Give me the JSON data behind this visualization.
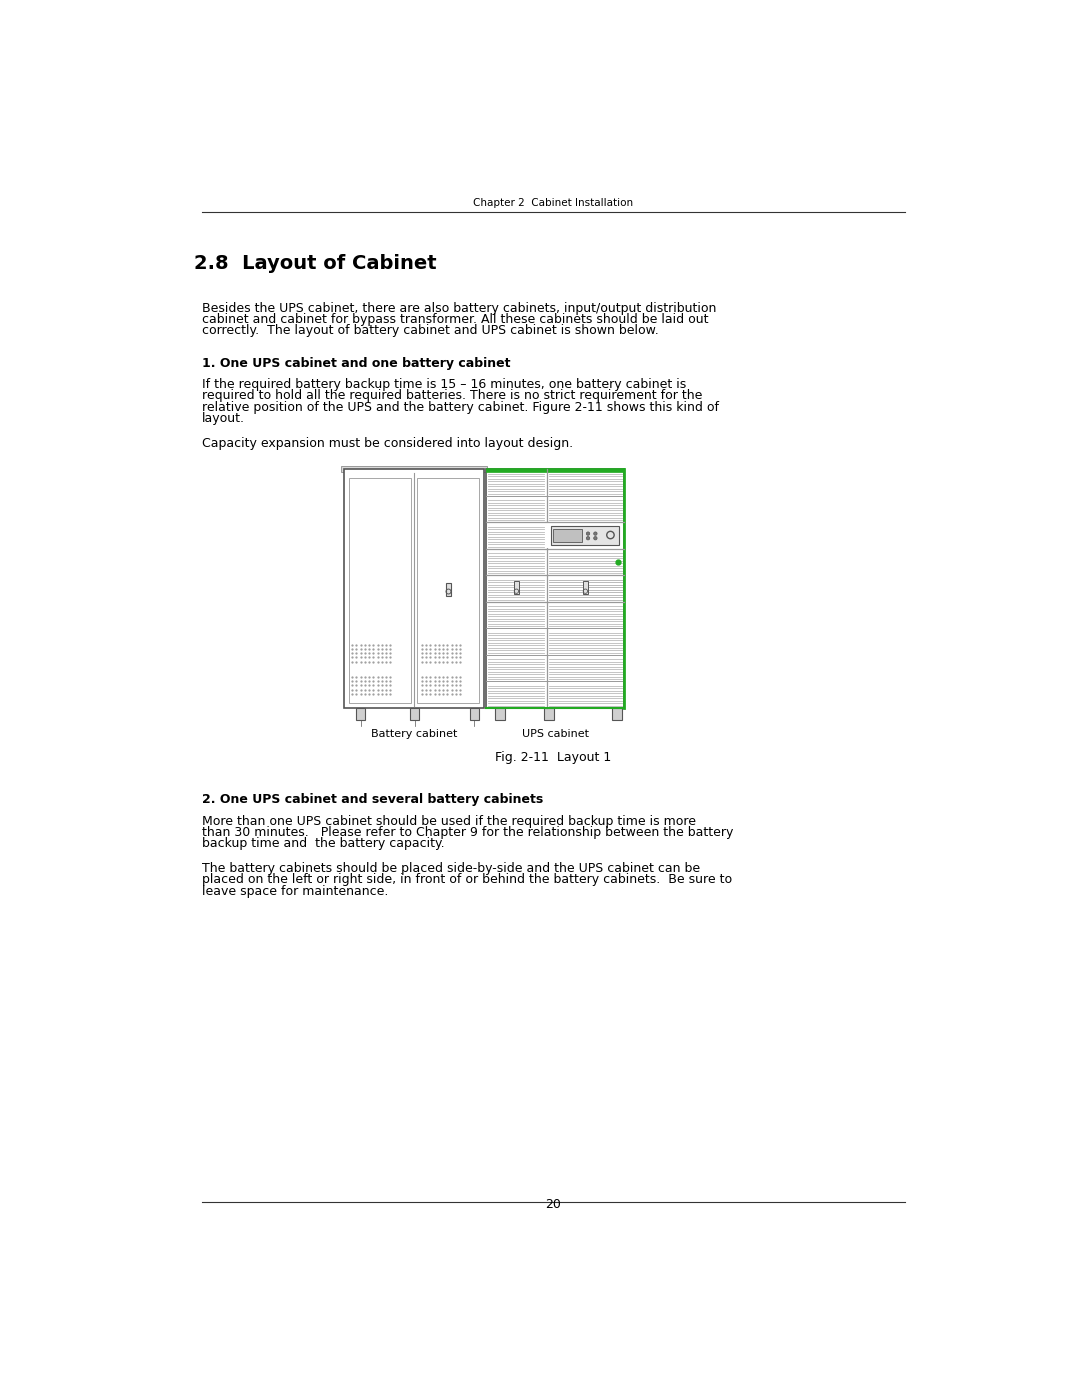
{
  "page_width": 10.8,
  "page_height": 13.97,
  "bg_color": "#ffffff",
  "header_text": "Chapter 2  Cabinet Installation",
  "footer_text": "20",
  "section_title": "2.8  Layout of Cabinet",
  "paragraph1_lines": [
    "Besides the UPS cabinet, there are also battery cabinets, input/output distribution",
    "cabinet and cabinet for bypass transformer. All these cabinets should be laid out",
    "correctly.  The layout of battery cabinet and UPS cabinet is shown below."
  ],
  "bold_heading1": "1. One UPS cabinet and one battery cabinet",
  "paragraph2_lines": [
    "If the required battery backup time is 15 – 16 minutes, one battery cabinet is",
    "required to hold all the required batteries. There is no strict requirement for the",
    "relative position of the UPS and the battery cabinet. Figure 2-11 shows this kind of",
    "layout."
  ],
  "paragraph3": "Capacity expansion must be considered into layout design.",
  "fig_caption": "Fig. 2-11  Layout 1",
  "bold_heading2": "2. One UPS cabinet and several battery cabinets",
  "paragraph4_lines": [
    "More than one UPS cabinet should be used if the required backup time is more",
    "than 30 minutes.   Please refer to Chapter 9 for the relationship between the battery",
    "backup time and  the battery capacity."
  ],
  "paragraph5_lines": [
    "The battery cabinets should be placed side-by-side and the UPS cabinet can be",
    "placed on the left or right side, in front of or behind the battery cabinets.  Be sure to",
    "leave space for maintenance."
  ],
  "gray_dark": "#555555",
  "gray_med": "#999999",
  "gray_light": "#cccccc",
  "gray_line": "#aaaaaa",
  "green_color": "#22aa22",
  "black": "#000000",
  "white": "#ffffff"
}
